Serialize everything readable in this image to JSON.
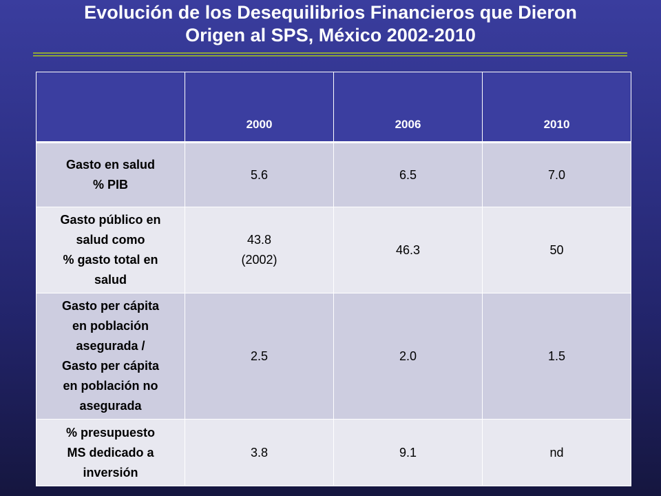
{
  "slide": {
    "title_line1": "Evolución de los Desequilibrios Financieros que Dieron",
    "title_line2": "Origen al SPS, México 2002-2010"
  },
  "table": {
    "header": [
      "",
      "2000",
      "2006",
      "2010"
    ],
    "rows": [
      {
        "label_lines": [
          "Gasto en salud",
          "% PIB"
        ],
        "values": [
          [
            "5.6"
          ],
          [
            "6.5"
          ],
          [
            "7.0"
          ]
        ]
      },
      {
        "label_lines": [
          "Gasto público en",
          "salud como",
          "% gasto total en",
          "salud"
        ],
        "values": [
          [
            "43.8",
            "(2002)"
          ],
          [
            "46.3"
          ],
          [
            "50"
          ]
        ]
      },
      {
        "label_lines": [
          "Gasto per cápita",
          "en población",
          "asegurada /",
          "Gasto per cápita",
          "en población no",
          "asegurada"
        ],
        "values": [
          [
            "2.5"
          ],
          [
            "2.0"
          ],
          [
            "1.5"
          ]
        ]
      },
      {
        "label_lines": [
          "% presupuesto",
          "MS dedicado a",
          "inversión"
        ],
        "values": [
          [
            "3.8"
          ],
          [
            "9.1"
          ],
          [
            "nd"
          ]
        ]
      }
    ]
  },
  "colors": {
    "background_top": "#3a3d9e",
    "background_bottom": "#15163f",
    "header_fill": "#3b3ea0",
    "row_fill_dark": "#cdcde0",
    "row_fill_light": "#e8e8f0",
    "rule_green": "#8fa63a"
  }
}
